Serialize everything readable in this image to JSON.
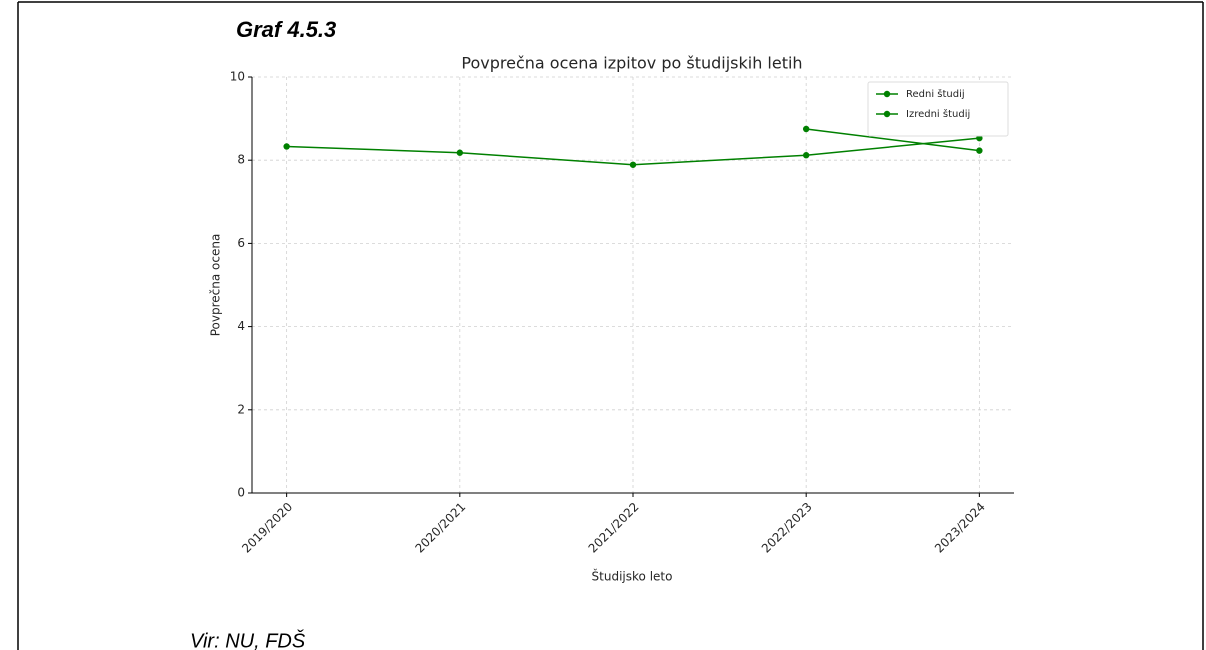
{
  "caption": "Graf 4.5.3",
  "source": "Vir: NU, FDŠ",
  "chart_data": {
    "type": "line",
    "title": "Povprečna ocena izpitov po študijskih letih",
    "x_label": "Študijsko leto",
    "y_label": "Povprečna ocena",
    "categories": [
      "2019/2020",
      "2020/2021",
      "2021/2022",
      "2022/2023",
      "2023/2024"
    ],
    "series": [
      {
        "name": "Redni študij",
        "color": "#008000",
        "values": [
          8.33,
          8.18,
          7.89,
          8.12,
          8.53
        ]
      },
      {
        "name": "Izredni študij",
        "color": "#008000",
        "values": [
          null,
          null,
          null,
          8.75,
          8.23
        ]
      }
    ],
    "ylim": [
      0,
      10
    ],
    "yticks": [
      0,
      2,
      4,
      6,
      8,
      10
    ],
    "grid": true,
    "legend": "upper right"
  }
}
